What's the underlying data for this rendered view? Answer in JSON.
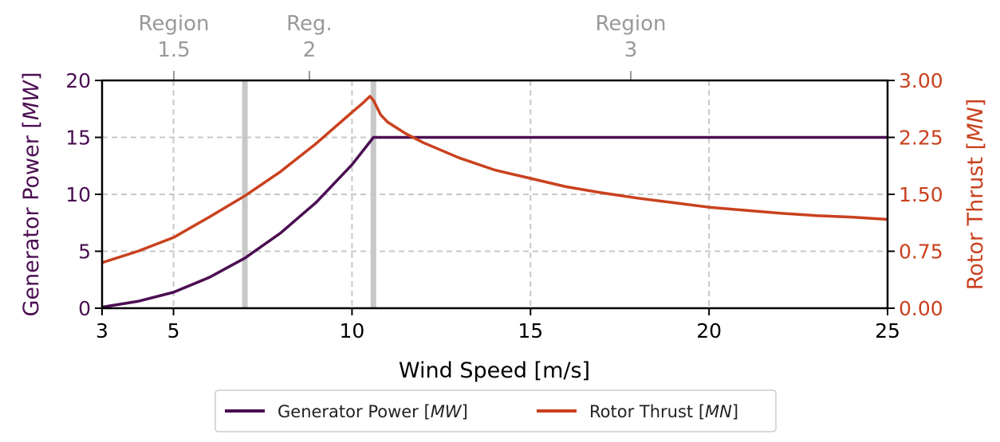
{
  "chart_data": {
    "type": "line",
    "xlabel": "Wind Speed [m/s]",
    "xlim": [
      3,
      25
    ],
    "xticks": [
      3,
      5,
      10,
      15,
      20,
      25
    ],
    "y_left": {
      "label_prefix": "Generator Power [",
      "label_unit": "MW",
      "label_suffix": "]",
      "lim": [
        0,
        20
      ],
      "ticks": [
        "0",
        "5",
        "10",
        "15",
        "20"
      ],
      "tick_values": [
        0,
        5,
        10,
        15,
        20
      ],
      "color": "#4b0e52"
    },
    "y_right": {
      "label_prefix": "Rotor Thrust [",
      "label_unit": "MN",
      "label_suffix": "]",
      "lim": [
        0,
        3
      ],
      "ticks": [
        "0.00",
        "0.75",
        "1.50",
        "2.25",
        "3.00"
      ],
      "tick_values": [
        0,
        0.75,
        1.5,
        2.25,
        3.0
      ],
      "color": "#c9411e"
    },
    "region_boundaries": [
      7.0,
      10.6
    ],
    "grid_x": [
      5,
      10,
      15,
      20
    ],
    "grid_y_left": [
      5,
      10,
      15
    ],
    "top_regions": [
      {
        "line1": "Region",
        "line2": "1.5",
        "x": 5.0
      },
      {
        "line1": "Reg.",
        "line2": "2",
        "x": 8.8
      },
      {
        "line1": "Region",
        "line2": "3",
        "x": 17.8
      }
    ],
    "series": [
      {
        "name_prefix": "Generator Power [",
        "name_unit": "MW",
        "name_suffix": "]",
        "axis": "left",
        "color": "#4b0e52",
        "x": [
          3,
          4,
          5,
          6,
          7,
          8,
          9,
          10,
          10.6,
          11,
          12,
          13,
          14,
          15,
          16,
          17,
          18,
          19,
          20,
          21,
          22,
          23,
          24,
          25
        ],
        "y": [
          0.1,
          0.6,
          1.4,
          2.7,
          4.4,
          6.6,
          9.3,
          12.6,
          15.0,
          15.0,
          15.0,
          15.0,
          15.0,
          15.0,
          15.0,
          15.0,
          15.0,
          15.0,
          15.0,
          15.0,
          15.0,
          15.0,
          15.0,
          15.0
        ]
      },
      {
        "name_prefix": "Rotor Thrust [",
        "name_unit": "MN",
        "name_suffix": "]",
        "axis": "right",
        "color": "#c9411e",
        "x": [
          3,
          4,
          5,
          6,
          7,
          8,
          9,
          10,
          10.3,
          10.5,
          10.6,
          10.8,
          11,
          11.5,
          12,
          13,
          14,
          15,
          16,
          17,
          18,
          19,
          20,
          21,
          22,
          23,
          24,
          25
        ],
        "y": [
          0.6,
          0.75,
          0.93,
          1.2,
          1.48,
          1.8,
          2.17,
          2.58,
          2.7,
          2.79,
          2.74,
          2.55,
          2.45,
          2.3,
          2.18,
          1.98,
          1.82,
          1.71,
          1.6,
          1.52,
          1.45,
          1.39,
          1.33,
          1.29,
          1.25,
          1.22,
          1.2,
          1.17
        ]
      }
    ]
  }
}
